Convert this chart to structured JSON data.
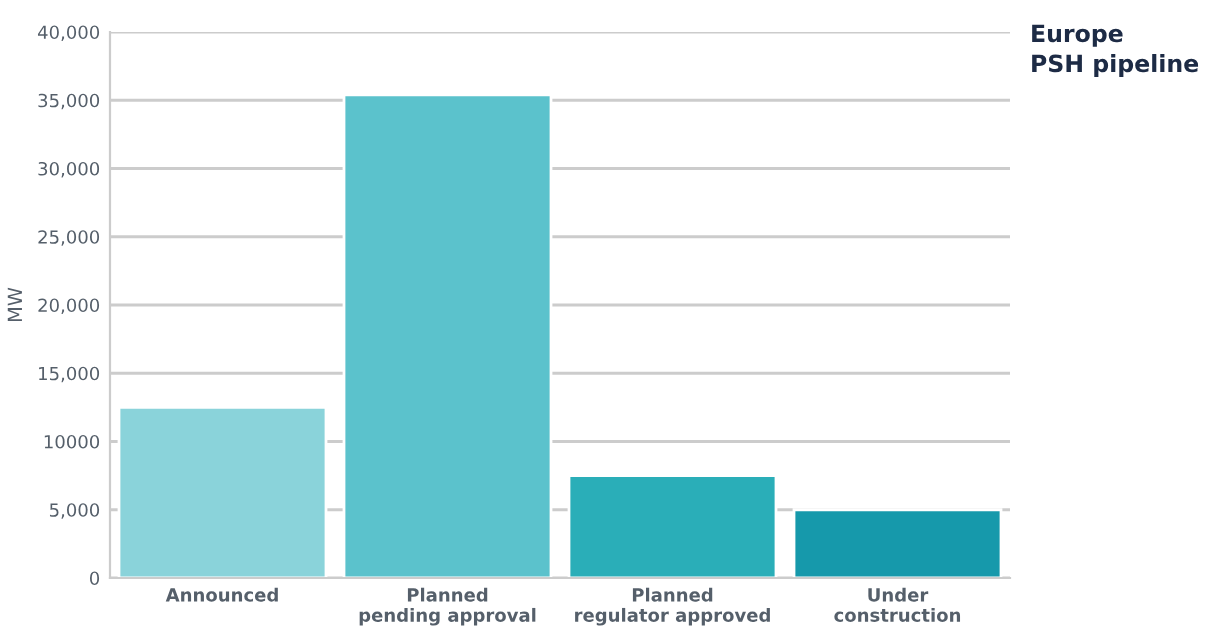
{
  "chart_data": {
    "type": "bar",
    "title": "Europe\nPSH pipeline",
    "ylabel": "MW",
    "categories": [
      "Announced",
      "Planned\npending approval",
      "Planned\nregulator approved",
      "Under\nconstruction"
    ],
    "values": [
      12500,
      35400,
      7500,
      5000
    ],
    "colors": [
      "#8ad3da",
      "#5bc2cc",
      "#2aaeb8",
      "#1699ab"
    ],
    "ylim": [
      0,
      40000
    ],
    "yticks": [
      0,
      {
        "value": 5000,
        "label": "5,000"
      },
      10000,
      {
        "value": 15000,
        "label": "15,000"
      },
      {
        "value": 20000,
        "label": "20,000"
      },
      {
        "value": 25000,
        "label": "25,000"
      },
      {
        "value": 30000,
        "label": "30,000"
      },
      {
        "value": 35000,
        "label": "35,000"
      },
      {
        "value": 40000,
        "label": "40,000"
      }
    ],
    "grid": "y"
  }
}
